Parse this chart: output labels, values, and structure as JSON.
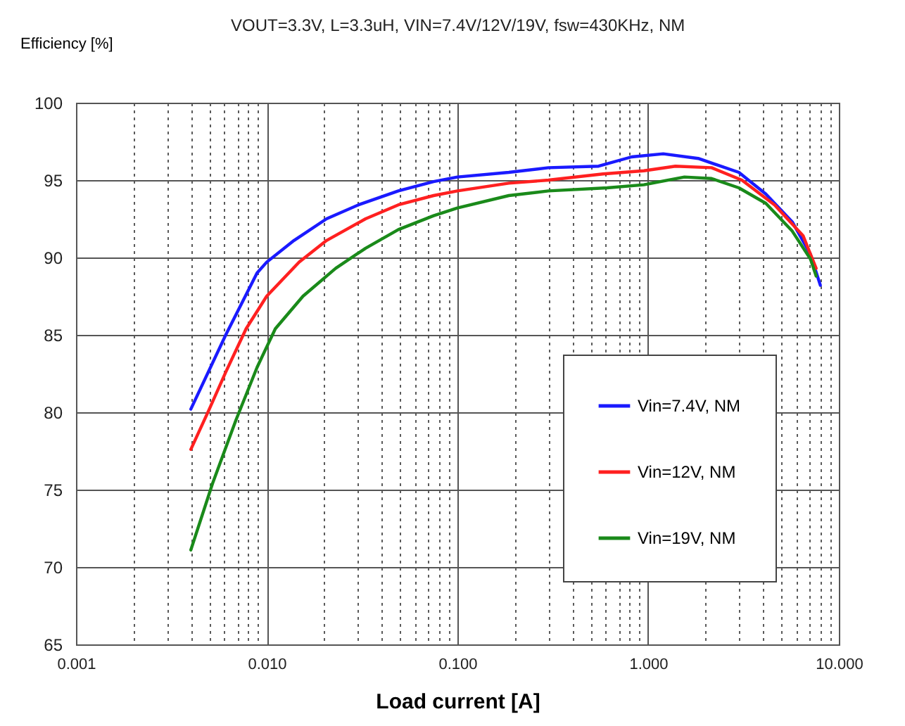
{
  "chart_data": {
    "type": "line",
    "title": "VOUT=3.3V, L=3.3uH, VIN=7.4V/12V/19V, fsw=430KHz, NM",
    "xlabel": "Load current [A]",
    "ylabel": "Efficiency [%]",
    "log": "x",
    "grid": true,
    "legend": "bottom right",
    "marker": "none",
    "line_style": "solid",
    "xlim": [
      0.001,
      10
    ],
    "ylim": [
      65,
      100
    ],
    "xticks": [
      {
        "value": 0.001,
        "label": "0.001"
      },
      {
        "value": 0.002,
        "label": null
      },
      {
        "value": 0.003,
        "label": null
      },
      {
        "value": 0.004,
        "label": null
      },
      {
        "value": 0.005,
        "label": null
      },
      {
        "value": 0.006,
        "label": null
      },
      {
        "value": 0.007,
        "label": null
      },
      {
        "value": 0.008,
        "label": null
      },
      {
        "value": 0.009,
        "label": null
      },
      {
        "value": 0.01,
        "label": "0.010"
      },
      {
        "value": 0.02,
        "label": null
      },
      {
        "value": 0.03,
        "label": null
      },
      {
        "value": 0.04,
        "label": null
      },
      {
        "value": 0.05,
        "label": null
      },
      {
        "value": 0.06,
        "label": null
      },
      {
        "value": 0.07,
        "label": null
      },
      {
        "value": 0.08,
        "label": null
      },
      {
        "value": 0.09,
        "label": null
      },
      {
        "value": 0.1,
        "label": "0.100"
      },
      {
        "value": 0.2,
        "label": null
      },
      {
        "value": 0.3,
        "label": null
      },
      {
        "value": 0.4,
        "label": null
      },
      {
        "value": 0.5,
        "label": null
      },
      {
        "value": 0.6,
        "label": null
      },
      {
        "value": 0.7,
        "label": null
      },
      {
        "value": 0.8,
        "label": null
      },
      {
        "value": 0.9,
        "label": null
      },
      {
        "value": 1,
        "label": "1.000"
      },
      {
        "value": 2,
        "label": null
      },
      {
        "value": 3,
        "label": null
      },
      {
        "value": 4,
        "label": null
      },
      {
        "value": 5,
        "label": null
      },
      {
        "value": 6,
        "label": null
      },
      {
        "value": 7,
        "label": null
      },
      {
        "value": 8,
        "label": null
      },
      {
        "value": 9,
        "label": null
      },
      {
        "value": 10,
        "label": "10.000"
      }
    ],
    "yticks": [
      65,
      70,
      75,
      80,
      85,
      90,
      95,
      100
    ],
    "series": [
      {
        "name": "Vin=7.4V, NM",
        "color": "#1a1aff",
        "x": [
          0.004,
          0.0061,
          0.0089,
          0.01,
          0.0139,
          0.0206,
          0.0303,
          0.049,
          0.075,
          0.1,
          0.186,
          0.3,
          0.55,
          0.82,
          1.2,
          1.83,
          2.99,
          4.14,
          5.7,
          7.1,
          8.0
        ],
        "values": [
          80.2,
          85.0,
          89.0,
          89.7,
          91.1,
          92.5,
          93.4,
          94.3,
          94.9,
          95.2,
          95.5,
          95.8,
          95.9,
          96.5,
          96.7,
          96.4,
          95.5,
          94.1,
          92.3,
          90.2,
          88.2
        ]
      },
      {
        "name": "Vin=12V, NM",
        "color": "#ff2020",
        "x": [
          0.004,
          0.005,
          0.0061,
          0.0078,
          0.01,
          0.0148,
          0.0206,
          0.033,
          0.049,
          0.075,
          0.1,
          0.186,
          0.3,
          0.58,
          0.95,
          1.39,
          2.15,
          3.1,
          4.6,
          6.5,
          7.6
        ],
        "values": [
          77.6,
          80.2,
          82.6,
          85.4,
          87.5,
          89.7,
          91.1,
          92.5,
          93.4,
          94.0,
          94.3,
          94.8,
          95.0,
          95.4,
          95.6,
          95.9,
          95.8,
          95.0,
          93.4,
          91.4,
          89.3
        ]
      },
      {
        "name": "Vin=19V, NM",
        "color": "#1a8a1a",
        "x": [
          0.004,
          0.0052,
          0.0069,
          0.0089,
          0.0111,
          0.0155,
          0.023,
          0.033,
          0.049,
          0.075,
          0.1,
          0.186,
          0.3,
          0.61,
          0.95,
          1.55,
          2.15,
          2.99,
          4.14,
          5.7,
          7.1,
          7.6
        ],
        "values": [
          71.1,
          75.4,
          79.5,
          82.9,
          85.4,
          87.5,
          89.3,
          90.6,
          91.8,
          92.7,
          93.2,
          94.0,
          94.3,
          94.5,
          94.7,
          95.2,
          95.1,
          94.5,
          93.5,
          91.7,
          89.9,
          88.8
        ]
      }
    ]
  }
}
